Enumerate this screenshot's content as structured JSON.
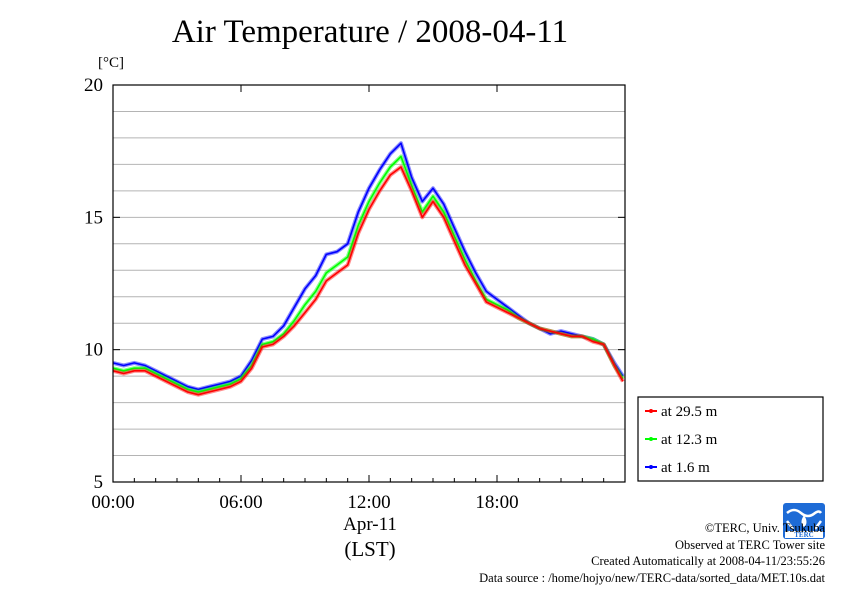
{
  "title": "Air Temperature / 2008-04-11",
  "unit_label": "[°C]",
  "date_label": "Apr-11",
  "timezone_label": "(LST)",
  "credits": {
    "copyright": "©TERC, Univ. Tsukuba",
    "site": "Observed at TERC Tower site",
    "created": "Created Automatically at 2008-04-11/23:55:26",
    "source": "Data source : /home/hojyo/new/TERC-data/sorted_data/MET.10s.dat"
  },
  "logo_text": "TERC",
  "chart_data": {
    "type": "line",
    "title": "Air Temperature / 2008-04-11",
    "xlabel": "Apr-11 (LST)",
    "ylabel": "[°C]",
    "xlim": [
      0,
      24
    ],
    "ylim": [
      5,
      20
    ],
    "x_ticks": [
      0,
      6,
      12,
      18
    ],
    "x_tick_labels": [
      "00:00",
      "06:00",
      "12:00",
      "18:00"
    ],
    "y_ticks": [
      5,
      10,
      15,
      20
    ],
    "y_tick_labels": [
      "5",
      "10",
      "15",
      "20"
    ],
    "grid": true,
    "legend_position": "right",
    "x": [
      0,
      0.5,
      1,
      1.5,
      2,
      2.5,
      3,
      3.5,
      4,
      4.5,
      5,
      5.5,
      6,
      6.5,
      7,
      7.5,
      8,
      8.5,
      9,
      9.5,
      10,
      10.5,
      11,
      11.5,
      12,
      12.5,
      13,
      13.5,
      14,
      14.5,
      15,
      15.5,
      16,
      16.5,
      17,
      17.5,
      18,
      18.5,
      19,
      19.5,
      20,
      20.5,
      21,
      21.5,
      22,
      22.5,
      23,
      23.5,
      23.9
    ],
    "series": [
      {
        "name": "at 29.5 m",
        "color": "#ff0000",
        "values": [
          9.2,
          9.1,
          9.2,
          9.2,
          9.0,
          8.8,
          8.6,
          8.4,
          8.3,
          8.4,
          8.5,
          8.6,
          8.8,
          9.3,
          10.1,
          10.2,
          10.5,
          10.9,
          11.4,
          11.9,
          12.6,
          12.9,
          13.2,
          14.4,
          15.3,
          16.0,
          16.6,
          16.9,
          16.0,
          15.0,
          15.6,
          15.0,
          14.1,
          13.2,
          12.5,
          11.8,
          11.6,
          11.4,
          11.2,
          11.0,
          10.8,
          10.7,
          10.6,
          10.5,
          10.5,
          10.3,
          10.2,
          9.4,
          8.8
        ]
      },
      {
        "name": "at 12.3 m",
        "color": "#00ff00",
        "values": [
          9.3,
          9.2,
          9.3,
          9.3,
          9.1,
          8.9,
          8.7,
          8.5,
          8.4,
          8.5,
          8.6,
          8.7,
          8.9,
          9.4,
          10.2,
          10.3,
          10.6,
          11.1,
          11.7,
          12.2,
          12.9,
          13.2,
          13.5,
          14.7,
          15.6,
          16.3,
          16.9,
          17.3,
          16.2,
          15.2,
          15.8,
          15.2,
          14.3,
          13.4,
          12.6,
          11.9,
          11.7,
          11.5,
          11.2,
          11.0,
          10.8,
          10.7,
          10.6,
          10.5,
          10.5,
          10.4,
          10.2,
          9.4,
          8.9
        ]
      },
      {
        "name": "at 1.6 m",
        "color": "#0000ff",
        "values": [
          9.5,
          9.4,
          9.5,
          9.4,
          9.2,
          9.0,
          8.8,
          8.6,
          8.5,
          8.6,
          8.7,
          8.8,
          9.0,
          9.6,
          10.4,
          10.5,
          10.9,
          11.6,
          12.3,
          12.8,
          13.6,
          13.7,
          14.0,
          15.2,
          16.1,
          16.8,
          17.4,
          17.8,
          16.5,
          15.6,
          16.1,
          15.5,
          14.6,
          13.7,
          12.9,
          12.2,
          11.9,
          11.6,
          11.3,
          11.0,
          10.8,
          10.6,
          10.7,
          10.6,
          10.5,
          10.4,
          10.2,
          9.5,
          9.0
        ]
      }
    ]
  }
}
